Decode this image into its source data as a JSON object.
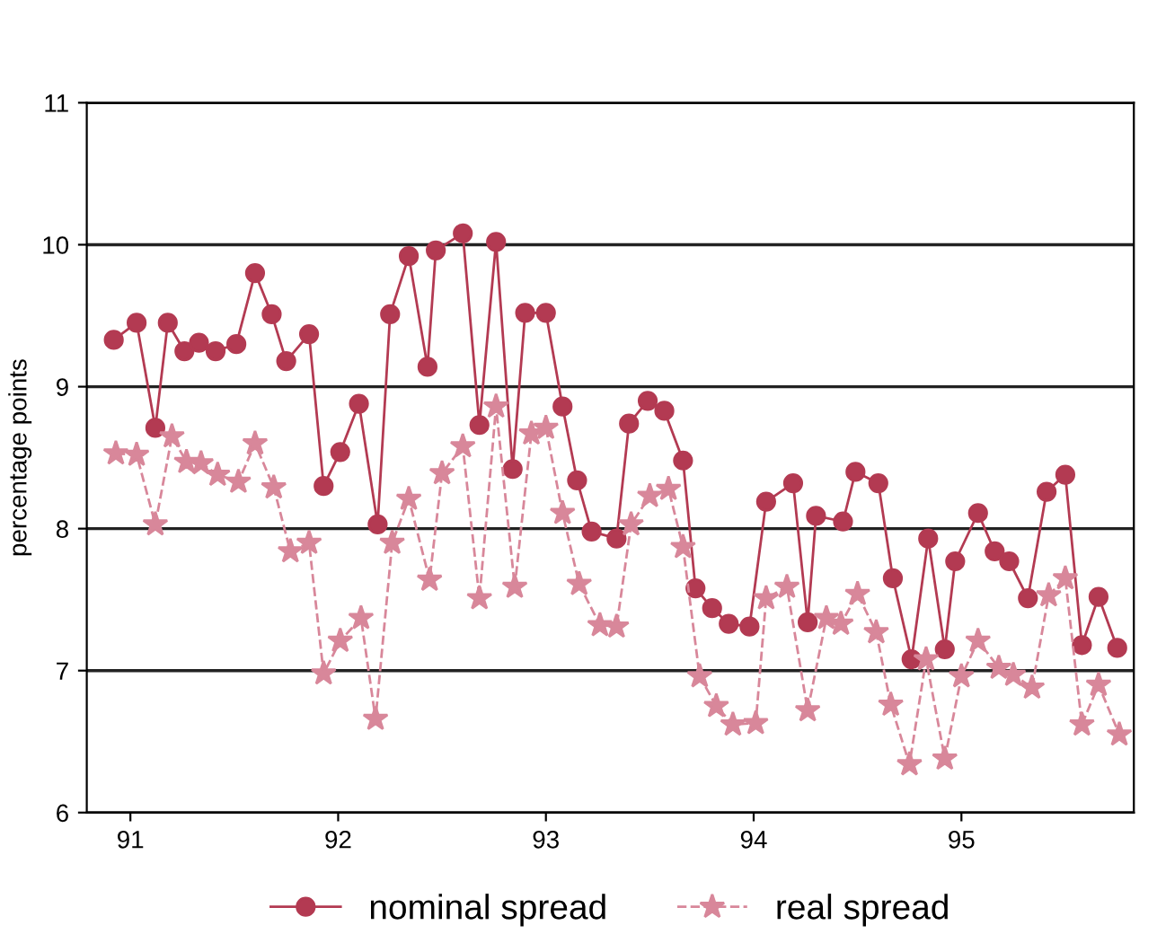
{
  "chart_data": {
    "type": "line",
    "ylabel": "percentage points",
    "xlim": [
      90.79,
      95.83
    ],
    "xticks": [
      91,
      92,
      93,
      94,
      95
    ],
    "ylim": [
      6,
      11
    ],
    "yticks": [
      6,
      7,
      8,
      9,
      10,
      11
    ],
    "grid": "y",
    "legend": "bottom",
    "series": [
      {
        "name": "nominal spread",
        "color": "#b33a52",
        "marker": "circle",
        "line_style": "solid",
        "x": [
          90.92,
          91.03,
          91.12,
          91.18,
          91.26,
          91.33,
          91.41,
          91.51,
          91.6,
          91.68,
          91.75,
          91.86,
          91.93,
          92.01,
          92.1,
          92.19,
          92.25,
          92.34,
          92.43,
          92.47,
          92.6,
          92.68,
          92.76,
          92.84,
          92.9,
          93.0,
          93.08,
          93.15,
          93.22,
          93.34,
          93.4,
          93.49,
          93.57,
          93.66,
          93.72,
          93.8,
          93.88,
          93.98,
          94.06,
          94.19,
          94.26,
          94.3,
          94.43,
          94.49,
          94.6,
          94.67,
          94.76,
          94.84,
          94.92,
          94.97,
          95.08,
          95.16,
          95.23,
          95.32,
          95.41,
          95.5,
          95.58,
          95.66,
          95.75
        ],
        "values": [
          9.33,
          9.45,
          8.71,
          9.45,
          9.25,
          9.31,
          9.25,
          9.3,
          9.8,
          9.51,
          9.18,
          9.37,
          8.3,
          8.54,
          8.88,
          8.03,
          9.51,
          9.92,
          9.14,
          9.96,
          10.08,
          8.73,
          10.02,
          8.42,
          9.52,
          9.52,
          8.86,
          8.34,
          7.98,
          7.93,
          8.74,
          8.9,
          8.83,
          8.48,
          7.58,
          7.44,
          7.33,
          7.31,
          8.19,
          8.32,
          7.34,
          8.09,
          8.05,
          8.4,
          8.32,
          7.65,
          7.08,
          7.93,
          7.15,
          7.77,
          8.11,
          7.84,
          7.77,
          7.51,
          8.26,
          8.38,
          7.18,
          7.52,
          7.16
        ]
      },
      {
        "name": "real spread",
        "color": "#d8879a",
        "marker": "star",
        "line_style": "dashed",
        "x": [
          90.93,
          91.03,
          91.12,
          91.2,
          91.27,
          91.34,
          91.42,
          91.52,
          91.6,
          91.69,
          91.77,
          91.86,
          91.93,
          92.01,
          92.11,
          92.18,
          92.26,
          92.34,
          92.44,
          92.5,
          92.6,
          92.68,
          92.76,
          92.85,
          92.93,
          93.0,
          93.08,
          93.16,
          93.26,
          93.34,
          93.41,
          93.5,
          93.59,
          93.66,
          93.74,
          93.82,
          93.9,
          94.01,
          94.06,
          94.16,
          94.26,
          94.35,
          94.42,
          94.5,
          94.59,
          94.66,
          94.75,
          94.83,
          94.92,
          95.0,
          95.08,
          95.18,
          95.25,
          95.34,
          95.42,
          95.5,
          95.58,
          95.66,
          95.76
        ],
        "values": [
          8.53,
          8.52,
          8.03,
          8.65,
          8.47,
          8.46,
          8.38,
          8.33,
          8.6,
          8.29,
          7.84,
          7.9,
          6.98,
          7.21,
          7.37,
          6.66,
          7.9,
          8.21,
          7.64,
          8.39,
          8.58,
          7.51,
          8.86,
          7.59,
          8.67,
          8.71,
          8.11,
          7.61,
          7.32,
          7.31,
          8.03,
          8.23,
          8.28,
          7.87,
          6.96,
          6.75,
          6.62,
          6.63,
          7.51,
          7.59,
          6.72,
          7.37,
          7.33,
          7.54,
          7.27,
          6.76,
          6.34,
          7.08,
          6.38,
          6.96,
          7.21,
          7.02,
          6.97,
          6.88,
          7.53,
          7.65,
          6.62,
          6.9,
          6.55
        ]
      }
    ]
  }
}
